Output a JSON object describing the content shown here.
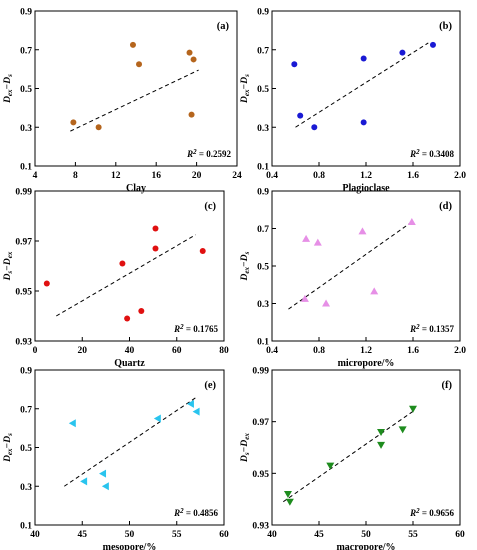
{
  "chart_data": [
    {
      "type": "scatter",
      "panel": "(a)",
      "xlabel": "Clay",
      "ylabel": "Dₑₓ−Dₛ",
      "ylabel_main": "D",
      "ylabel_sub1": "ex",
      "ylabel_sub2": "s",
      "xlim": [
        4,
        24
      ],
      "ylim": [
        0.1,
        0.9
      ],
      "xticks": [
        4,
        8,
        12,
        16,
        20,
        24
      ],
      "yticks": [
        0.1,
        0.3,
        0.5,
        0.7,
        0.9
      ],
      "xtick_labels": [
        "4",
        "8",
        "12",
        "16",
        "20",
        "24"
      ],
      "ytick_labels": [
        "0.1",
        "0.3",
        "0.5",
        "0.7",
        "0.9"
      ],
      "marker": "circle",
      "color": "#b5651d",
      "points": [
        [
          7.8,
          0.325
        ],
        [
          10.3,
          0.3
        ],
        [
          13.7,
          0.725
        ],
        [
          14.3,
          0.625
        ],
        [
          19.3,
          0.685
        ],
        [
          19.7,
          0.65
        ],
        [
          19.5,
          0.365
        ]
      ],
      "fit": [
        [
          7.5,
          0.28
        ],
        [
          20.2,
          0.595
        ]
      ],
      "r2": "R² = 0.2592",
      "r2_main": "R",
      "r2_sup": "2",
      "r2_value": " = 0.2592"
    },
    {
      "type": "scatter",
      "panel": "(b)",
      "xlabel": "Plagioclase",
      "ylabel": "Dₑₓ−Dₛ",
      "ylabel_main": "D",
      "ylabel_sub1": "ex",
      "ylabel_sub2": "s",
      "xlim": [
        0.4,
        2.0
      ],
      "ylim": [
        0.1,
        0.9
      ],
      "xticks": [
        0.4,
        0.8,
        1.2,
        1.6,
        2.0
      ],
      "yticks": [
        0.1,
        0.3,
        0.5,
        0.7,
        0.9
      ],
      "xtick_labels": [
        "0.4",
        "0.8",
        "1.2",
        "1.6",
        "2.0"
      ],
      "ytick_labels": [
        "0.1",
        "0.3",
        "0.5",
        "0.7",
        "0.9"
      ],
      "marker": "circle",
      "color": "#1a1ad4",
      "points": [
        [
          0.59,
          0.625
        ],
        [
          0.64,
          0.36
        ],
        [
          0.76,
          0.3
        ],
        [
          1.18,
          0.655
        ],
        [
          1.18,
          0.325
        ],
        [
          1.51,
          0.685
        ],
        [
          1.77,
          0.725
        ]
      ],
      "fit": [
        [
          0.6,
          0.3
        ],
        [
          1.73,
          0.735
        ]
      ],
      "r2": "R² = 0.3408",
      "r2_main": "R",
      "r2_sup": "2",
      "r2_value": " = 0.3408"
    },
    {
      "type": "scatter",
      "panel": "(c)",
      "xlabel": "Quartz",
      "ylabel": "Dₛ−Dₛₖ",
      "ylabel_main": "D",
      "ylabel_sub1": "s",
      "ylabel_sub2": "ex",
      "xlim": [
        0,
        80
      ],
      "ylim": [
        0.93,
        0.99
      ],
      "xticks": [
        0,
        20,
        40,
        60,
        80
      ],
      "yticks": [
        0.93,
        0.95,
        0.97,
        0.99
      ],
      "xtick_labels": [
        "0",
        "20",
        "40",
        "60",
        "80"
      ],
      "ytick_labels": [
        "0.93",
        "0.95",
        "0.97",
        "0.99"
      ],
      "marker": "circle",
      "color": "#e01010",
      "points": [
        [
          5,
          0.953
        ],
        [
          37,
          0.961
        ],
        [
          39,
          0.939
        ],
        [
          45,
          0.942
        ],
        [
          51,
          0.975
        ],
        [
          51,
          0.967
        ],
        [
          71,
          0.966
        ]
      ],
      "fit": [
        [
          9,
          0.94
        ],
        [
          68,
          0.9725
        ]
      ],
      "r2": "R² = 0.1765",
      "r2_main": "R",
      "r2_sup": "2",
      "r2_value": " = 0.1765"
    },
    {
      "type": "scatter",
      "panel": "(d)",
      "xlabel": "micropore/%",
      "ylabel": "Dₑₓ−Dₛ",
      "ylabel_main": "D",
      "ylabel_sub1": "ex",
      "ylabel_sub2": "s",
      "xlim": [
        0.4,
        2.0
      ],
      "ylim": [
        0.1,
        0.9
      ],
      "xticks": [
        0.4,
        0.8,
        1.2,
        1.6,
        2.0
      ],
      "yticks": [
        0.1,
        0.3,
        0.5,
        0.7,
        0.9
      ],
      "xtick_labels": [
        "0.4",
        "0.8",
        "1.2",
        "1.6",
        "2.0"
      ],
      "ytick_labels": [
        "0.1",
        "0.3",
        "0.5",
        "0.7",
        "0.9"
      ],
      "marker": "triangle-up",
      "color": "#e68fe6",
      "points": [
        [
          0.69,
          0.645
        ],
        [
          0.79,
          0.625
        ],
        [
          0.68,
          0.325
        ],
        [
          0.86,
          0.3
        ],
        [
          1.17,
          0.685
        ],
        [
          1.27,
          0.365
        ],
        [
          1.59,
          0.735
        ]
      ],
      "fit": [
        [
          0.54,
          0.27
        ],
        [
          1.59,
          0.735
        ]
      ],
      "r2": "R² = 0.1357",
      "r2_main": "R",
      "r2_sup": "2",
      "r2_value": " = 0.1357"
    },
    {
      "type": "scatter",
      "panel": "(e)",
      "xlabel": "mesopore/%",
      "ylabel": "Dₑₓ−Dₛ",
      "ylabel_main": "D",
      "ylabel_sub1": "ex",
      "ylabel_sub2": "s",
      "xlim": [
        40,
        60
      ],
      "ylim": [
        0.1,
        0.9
      ],
      "xticks": [
        40,
        45,
        50,
        55,
        60
      ],
      "yticks": [
        0.1,
        0.3,
        0.5,
        0.7,
        0.9
      ],
      "xtick_labels": [
        "40",
        "45",
        "50",
        "55",
        "60"
      ],
      "ytick_labels": [
        "0.1",
        "0.3",
        "0.5",
        "0.7",
        "0.9"
      ],
      "marker": "triangle-left",
      "color": "#29c4ee",
      "points": [
        [
          44,
          0.625
        ],
        [
          45.2,
          0.325
        ],
        [
          47.2,
          0.365
        ],
        [
          47.5,
          0.3
        ],
        [
          53,
          0.65
        ],
        [
          56.5,
          0.725
        ],
        [
          57.1,
          0.685
        ]
      ],
      "fit": [
        [
          43.1,
          0.3
        ],
        [
          57.1,
          0.76
        ]
      ],
      "r2": "R² = 0.4856",
      "r2_main": "R",
      "r2_sup": "2",
      "r2_value": " = 0.4856"
    },
    {
      "type": "scatter",
      "panel": "(f)",
      "xlabel": "macropore/%",
      "ylabel": "Dₛ−Dₛₖ",
      "ylabel_main": "D",
      "ylabel_sub1": "s",
      "ylabel_sub2": "ex",
      "xlim": [
        40,
        60
      ],
      "ylim": [
        0.93,
        0.99
      ],
      "xticks": [
        40,
        45,
        50,
        55,
        60
      ],
      "yticks": [
        0.93,
        0.95,
        0.97,
        0.99
      ],
      "xtick_labels": [
        "40",
        "45",
        "50",
        "55",
        "60"
      ],
      "ytick_labels": [
        "0.93",
        "0.95",
        "0.97",
        "0.99"
      ],
      "marker": "triangle-down",
      "color": "#1e8c1e",
      "points": [
        [
          41.7,
          0.942
        ],
        [
          41.9,
          0.939
        ],
        [
          46.2,
          0.953
        ],
        [
          51.6,
          0.966
        ],
        [
          51.6,
          0.961
        ],
        [
          53.9,
          0.967
        ],
        [
          55,
          0.975
        ]
      ],
      "fit": [
        [
          41.2,
          0.939
        ],
        [
          55,
          0.974
        ]
      ],
      "r2": "R² = 0.9656",
      "r2_main": "R",
      "r2_sup": "2",
      "r2_value": " = 0.9656"
    }
  ]
}
